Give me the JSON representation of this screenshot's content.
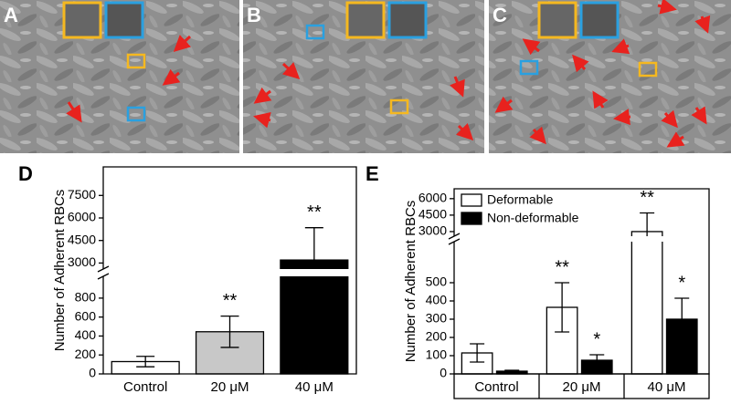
{
  "image_panels": [
    {
      "label": "A"
    },
    {
      "label": "B"
    },
    {
      "label": "C"
    }
  ],
  "chart_data": [
    {
      "type": "bar",
      "panel_label": "D",
      "ylabel": "Number of Adherent RBCs",
      "categories": [
        "Control",
        "20 μM",
        "40 μM"
      ],
      "values": [
        130,
        445,
        3200
      ],
      "errors": [
        55,
        165,
        2150
      ],
      "colors": [
        "#ffffff",
        "#c8c8c8",
        "#000000"
      ],
      "annotations": [
        null,
        "**",
        "**"
      ],
      "ylim": [
        0,
        9400
      ],
      "ybreak": [
        1030,
        2600
      ],
      "yticks": [
        0,
        200,
        400,
        600,
        800,
        3000,
        4500,
        6000,
        7500
      ]
    },
    {
      "type": "grouped_bar",
      "panel_label": "E",
      "ylabel": "Number of Adherent RBCs",
      "categories": [
        "Control",
        "20 μM",
        "40 μM"
      ],
      "series": [
        {
          "name": "Deformable",
          "color": "#ffffff",
          "values": [
            115,
            365,
            3000
          ],
          "errors": [
            50,
            135,
            1700
          ],
          "annotations": [
            null,
            "**",
            "**"
          ]
        },
        {
          "name": "Non-deformable",
          "color": "#000000",
          "values": [
            15,
            75,
            300
          ],
          "errors": [
            5,
            30,
            115
          ],
          "annotations": [
            null,
            "*",
            "*"
          ]
        }
      ],
      "legend": "upper left",
      "ylim": [
        0,
        6900
      ],
      "ybreak": [
        725,
        2580
      ],
      "yticks": [
        0,
        100,
        200,
        300,
        400,
        500,
        3000,
        4500,
        6000
      ]
    }
  ]
}
